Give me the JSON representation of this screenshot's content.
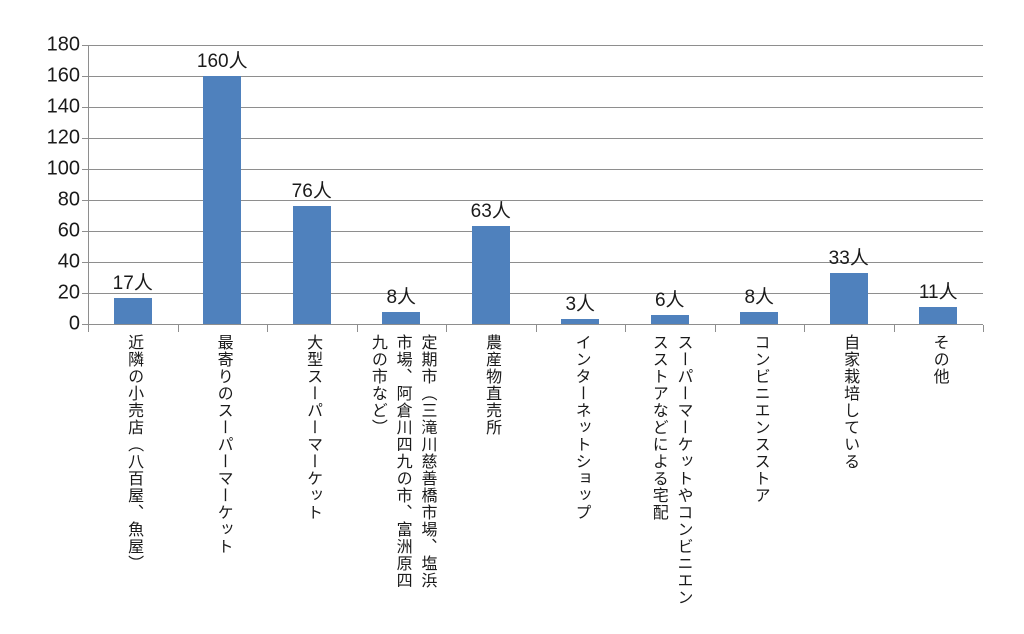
{
  "chart_data": {
    "type": "bar",
    "title": "",
    "xlabel": "",
    "ylabel": "",
    "unit": "人",
    "categories": [
      "近隣の小売店（八百屋、魚屋）",
      "最寄りのスーパーマーケット",
      "大型スーパーマーケット",
      "定期市（三滝川慈善橋市場、塩浜\n市場、阿倉川四九の市、富洲原四\n九の市など）",
      "農産物直売所",
      "インターネットショップ",
      "スーパーマーケットやコンビニエン\nスストアなどによる宅配",
      "コンビニエンスストア",
      "自家栽培している",
      "その他"
    ],
    "values": [
      17,
      160,
      76,
      8,
      63,
      3,
      6,
      8,
      33,
      11
    ],
    "value_labels": [
      "17人",
      "160人",
      "76人",
      "8人",
      "63人",
      "3人",
      "6人",
      "8人",
      "33人",
      "11人"
    ],
    "ylim": [
      0,
      180
    ],
    "yticks": [
      0,
      20,
      40,
      60,
      80,
      100,
      120,
      140,
      160,
      180
    ],
    "grid": true,
    "legend": "none",
    "colors": {
      "bar": "#4F81BD",
      "gridline": "#8E8E8E",
      "axis": "#8E8E8E",
      "text": "#1A1A1A"
    }
  }
}
